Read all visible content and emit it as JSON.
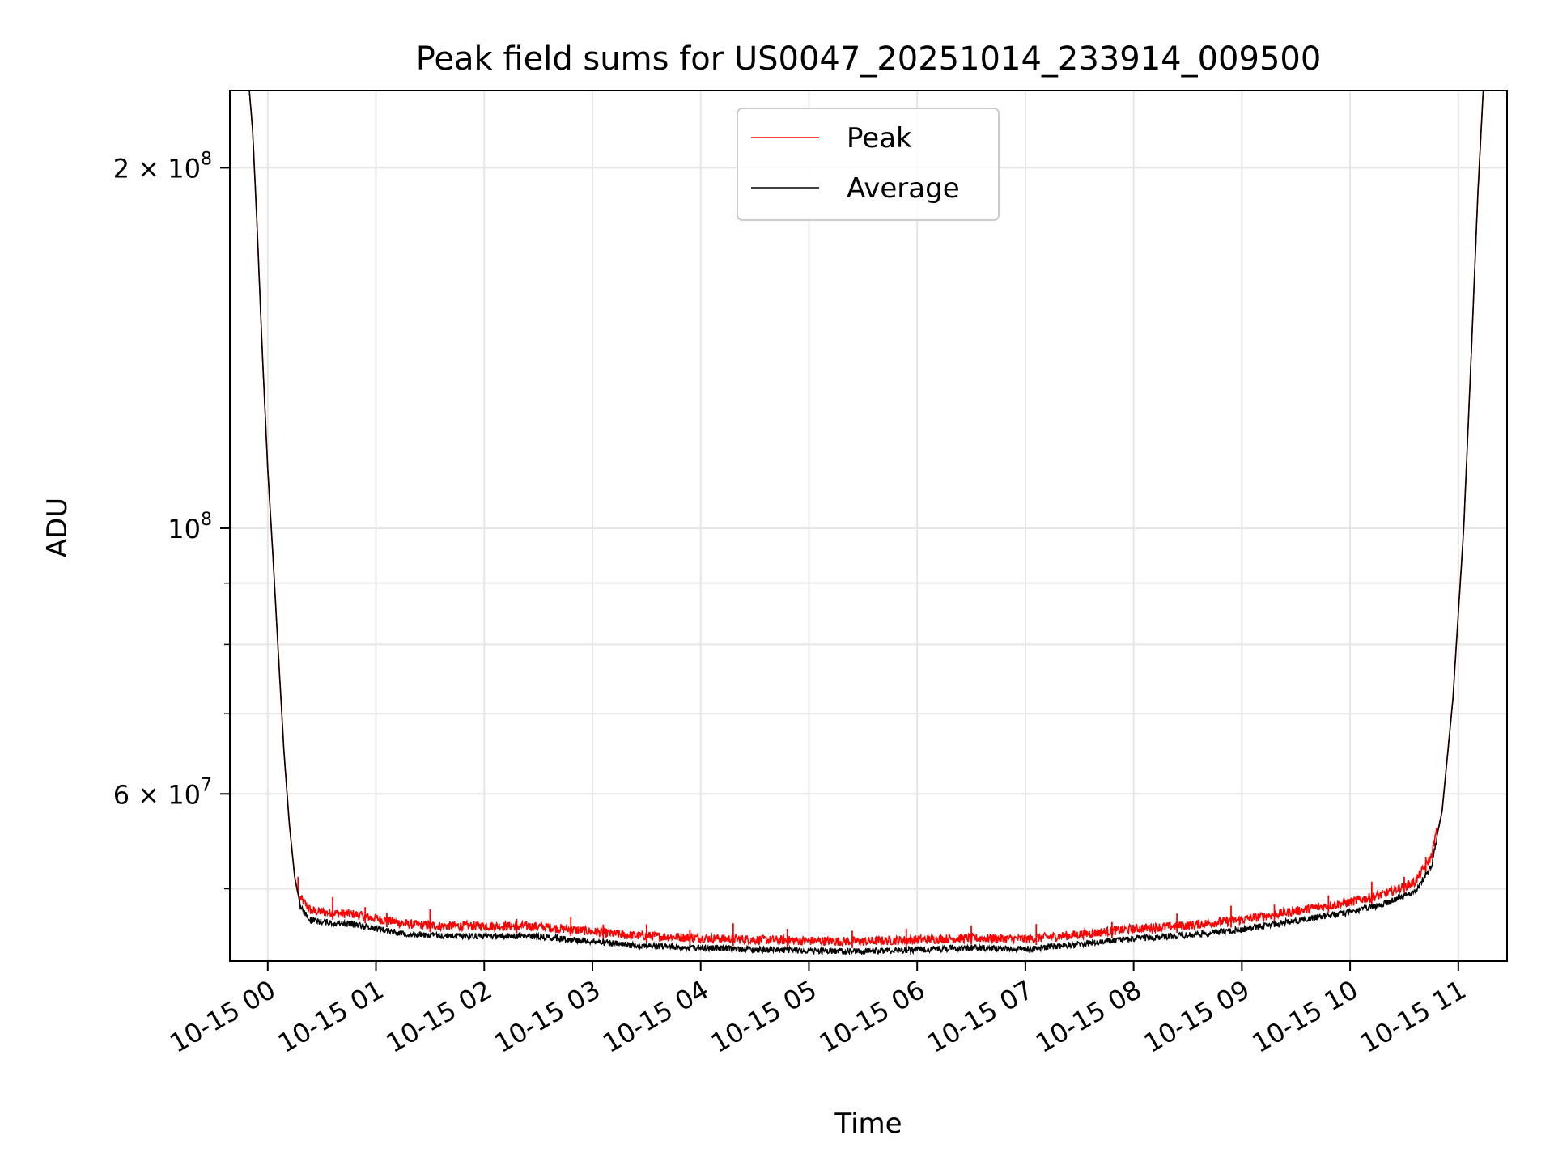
{
  "chart_data": {
    "type": "line",
    "title": "Peak field sums for US0047_20251014_233914_009500",
    "xlabel": "Time",
    "ylabel": "ADU",
    "yscale": "log",
    "ylim": [
      43500000,
      232000000
    ],
    "xlim_hours": [
      -0.35,
      11.45
    ],
    "grid": true,
    "legend_position": "top-center",
    "x_ticks": [
      {
        "hour": 0,
        "label": "10-15 00"
      },
      {
        "hour": 1,
        "label": "10-15 01"
      },
      {
        "hour": 2,
        "label": "10-15 02"
      },
      {
        "hour": 3,
        "label": "10-15 03"
      },
      {
        "hour": 4,
        "label": "10-15 04"
      },
      {
        "hour": 5,
        "label": "10-15 05"
      },
      {
        "hour": 6,
        "label": "10-15 06"
      },
      {
        "hour": 7,
        "label": "10-15 07"
      },
      {
        "hour": 8,
        "label": "10-15 08"
      },
      {
        "hour": 9,
        "label": "10-15 09"
      },
      {
        "hour": 10,
        "label": "10-15 10"
      },
      {
        "hour": 11,
        "label": "10-15 11"
      }
    ],
    "y_major_ticks": [
      {
        "value": 200000000,
        "mantissa": "2",
        "base": "10",
        "exp": "8"
      },
      {
        "value": 100000000,
        "mantissa": "",
        "base": "10",
        "exp": "8"
      },
      {
        "value": 60000000,
        "mantissa": "6",
        "base": "10",
        "exp": "7"
      }
    ],
    "y_minor_values": [
      50000000,
      70000000,
      80000000,
      90000000,
      200000000
    ],
    "series": [
      {
        "name": "Peak",
        "color": "#ff0000",
        "spikes_hours": [
          0.28,
          0.6,
          0.9,
          1.1,
          1.5,
          2.3,
          2.8,
          3.1,
          3.5,
          3.9,
          4.3,
          4.8,
          5.4,
          5.9,
          6.5,
          7.1,
          7.8,
          8.4,
          8.9,
          9.3,
          9.8,
          10.2,
          10.5,
          10.7
        ],
        "spike_height_frac": 0.035
      },
      {
        "name": "Average",
        "color": "#000000",
        "points": [
          {
            "h": -0.17,
            "v": 232000000
          },
          {
            "h": -0.14,
            "v": 215000000
          },
          {
            "h": -0.1,
            "v": 180000000
          },
          {
            "h": -0.05,
            "v": 140000000
          },
          {
            "h": 0.0,
            "v": 112000000
          },
          {
            "h": 0.05,
            "v": 94000000
          },
          {
            "h": 0.1,
            "v": 78000000
          },
          {
            "h": 0.15,
            "v": 65000000
          },
          {
            "h": 0.2,
            "v": 56500000
          },
          {
            "h": 0.25,
            "v": 51000000
          },
          {
            "h": 0.3,
            "v": 48500000
          },
          {
            "h": 0.4,
            "v": 47300000
          },
          {
            "h": 0.6,
            "v": 47100000
          },
          {
            "h": 0.8,
            "v": 47000000
          },
          {
            "h": 1.0,
            "v": 46600000
          },
          {
            "h": 1.3,
            "v": 46100000
          },
          {
            "h": 1.6,
            "v": 45950000
          },
          {
            "h": 2.0,
            "v": 45950000
          },
          {
            "h": 2.5,
            "v": 45900000
          },
          {
            "h": 2.9,
            "v": 45550000
          },
          {
            "h": 3.3,
            "v": 45150000
          },
          {
            "h": 4.0,
            "v": 44900000
          },
          {
            "h": 4.5,
            "v": 44750000
          },
          {
            "h": 5.0,
            "v": 44650000
          },
          {
            "h": 5.5,
            "v": 44600000
          },
          {
            "h": 6.0,
            "v": 44750000
          },
          {
            "h": 6.5,
            "v": 44900000
          },
          {
            "h": 7.0,
            "v": 44800000
          },
          {
            "h": 7.5,
            "v": 45200000
          },
          {
            "h": 8.0,
            "v": 45700000
          },
          {
            "h": 8.5,
            "v": 46000000
          },
          {
            "h": 9.0,
            "v": 46500000
          },
          {
            "h": 9.5,
            "v": 47300000
          },
          {
            "h": 10.0,
            "v": 48100000
          },
          {
            "h": 10.3,
            "v": 48800000
          },
          {
            "h": 10.6,
            "v": 50000000
          },
          {
            "h": 10.75,
            "v": 52500000
          },
          {
            "h": 10.85,
            "v": 58000000
          },
          {
            "h": 10.95,
            "v": 72000000
          },
          {
            "h": 11.05,
            "v": 100000000
          },
          {
            "h": 11.12,
            "v": 140000000
          },
          {
            "h": 11.18,
            "v": 190000000
          },
          {
            "h": 11.23,
            "v": 232000000
          }
        ]
      }
    ]
  }
}
